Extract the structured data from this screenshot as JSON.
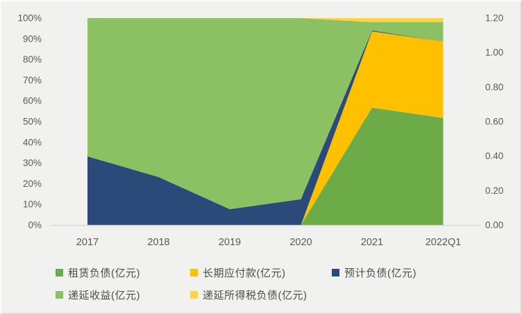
{
  "chart_data": {
    "type": "area",
    "subtype": "100-percent-stacked",
    "title": "",
    "categories": [
      "2017",
      "2018",
      "2019",
      "2020",
      "2021",
      "2022Q1"
    ],
    "series": [
      {
        "key": "lease-liabilities",
        "name": "租赁负债(亿元)",
        "color": "#6DAB48",
        "values": [
          0,
          0,
          0,
          0,
          56.7,
          51.7
        ]
      },
      {
        "key": "long-term-payables",
        "name": "长期应付款(亿元)",
        "color": "#FFC000",
        "values": [
          0,
          0,
          0,
          0,
          36.9,
          36.9
        ]
      },
      {
        "key": "estimated-liabilities",
        "name": "预计负债(亿元)",
        "color": "#2B4A7A",
        "values": [
          33.2,
          23.2,
          7.7,
          12.5,
          0.4,
          0
        ]
      },
      {
        "key": "deferred-income",
        "name": "递延收益(亿元)",
        "color": "#8CC163",
        "values": [
          66.8,
          76.8,
          92.3,
          87.5,
          4.0,
          9.4
        ]
      },
      {
        "key": "deferred-tax-liabilities",
        "name": "递延所得税负债(亿元)",
        "color": "#FFD24C",
        "values": [
          0,
          0,
          0,
          0,
          2.0,
          2.0
        ]
      }
    ],
    "left_axis": {
      "ticks": [
        "0%",
        "10%",
        "20%",
        "30%",
        "40%",
        "50%",
        "60%",
        "70%",
        "80%",
        "90%",
        "100%"
      ],
      "min": 0,
      "max": 100
    },
    "right_axis": {
      "ticks": [
        "0.00",
        "0.20",
        "0.40",
        "0.60",
        "0.80",
        "1.00",
        "1.20"
      ],
      "min": 0.0,
      "max": 1.2
    },
    "legend_position": "bottom",
    "grid": false
  },
  "colors": {
    "background": "#F1F1F0",
    "axis_line": "#D9D9D9",
    "tick_text": "#595959",
    "legend_text": "#4D4D4D"
  }
}
